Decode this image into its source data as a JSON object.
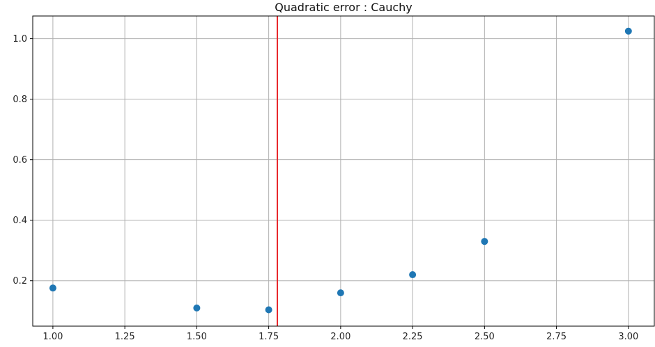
{
  "chart_data": {
    "type": "scatter",
    "title": "Quadratic error : Cauchy",
    "xlabel": "",
    "ylabel": "",
    "xlim": [
      0.93,
      3.09
    ],
    "ylim": [
      0.05,
      1.075
    ],
    "xticks": [
      1.0,
      1.25,
      1.5,
      1.75,
      2.0,
      2.25,
      2.5,
      2.75,
      3.0
    ],
    "xtick_labels": [
      "1.00",
      "1.25",
      "1.50",
      "1.75",
      "2.00",
      "2.25",
      "2.50",
      "2.75",
      "3.00"
    ],
    "yticks": [
      0.2,
      0.4,
      0.6,
      0.8,
      1.0
    ],
    "ytick_labels": [
      "0.2",
      "0.4",
      "0.6",
      "0.8",
      "1.0"
    ],
    "grid": true,
    "series": [
      {
        "x": [
          1.0,
          1.5,
          1.75,
          2.0,
          2.25,
          2.5,
          3.0
        ],
        "y": [
          0.176,
          0.11,
          0.104,
          0.16,
          0.22,
          0.33,
          1.025
        ],
        "color": "#1f77b4"
      }
    ],
    "vline": {
      "x": 1.78,
      "color": "#e8262b"
    }
  }
}
